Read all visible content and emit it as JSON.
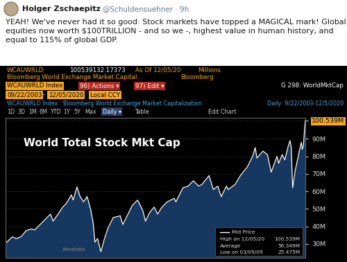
{
  "tweet": {
    "name": "Holger Zschaepitz",
    "handle": "@Schuldensuehner · 9h",
    "text": "YEAH! We've never had it so good: Stock markets have topped a MAGICAL mark! Global equities now worth $100TRILLION - and so we -, highest value in human history, and equal to 115% of global GDP."
  },
  "terminal": {
    "row1": {
      "ticker": "WCAUWRLD",
      "price": "100539132.17373",
      "as_of": "As Of 12/05/20",
      "units": "Millions"
    },
    "row2": {
      "name": "Bloomberg World Exchange Market Capital...",
      "source": "Bloomberg"
    },
    "row3": {
      "security": "WCAUWRLD Index",
      "actions": "96) Actions ▾",
      "edit": "97) Edit ▾",
      "page": "G 298: WorldMktCap"
    },
    "row4": {
      "start": "09/22/2003",
      "dash": "-",
      "end": "12/05/2020",
      "currency": "Local CCY"
    },
    "row5": {
      "description": "WCAUWRLD Index : Bloomberg World Exchange Market Capitalization",
      "period": "Daily  9/22/2003-12/5/2020"
    },
    "row6": {
      "buttons": [
        "1D",
        "3D",
        "1M",
        "6M",
        "YTD",
        "1Y",
        "5Y",
        "Max"
      ],
      "frequency": "Daily ▾",
      "table": "Table",
      "edit_chart": "Edit Chart"
    },
    "stats": [
      {
        "label": "Mid Price"
      },
      {
        "label": "High on 12/05/20",
        "value": "100.539M"
      },
      {
        "label": "Average",
        "value": "56.349M"
      },
      {
        "label": "Low on 03/09/09",
        "value": "25.475M"
      }
    ],
    "annotate": "Annotate"
  },
  "chart_data": {
    "type": "area",
    "title": "World Total Stock Mkt Cap",
    "color": "#ffffff",
    "x": [
      2003.72,
      2003.9,
      2004.1,
      2004.35,
      2004.6,
      2004.9,
      2005.2,
      2005.4,
      2005.7,
      2005.9,
      2006.3,
      2006.45,
      2006.7,
      2007.0,
      2007.2,
      2007.5,
      2007.6,
      2007.82,
      2008.0,
      2008.2,
      2008.4,
      2008.6,
      2008.75,
      2008.85,
      2009.0,
      2009.19,
      2009.4,
      2009.6,
      2009.9,
      2010.3,
      2010.45,
      2010.7,
      2011.0,
      2011.3,
      2011.6,
      2011.75,
      2012.0,
      2012.25,
      2012.45,
      2012.7,
      2013.0,
      2013.4,
      2013.5,
      2013.9,
      2014.2,
      2014.5,
      2014.8,
      2015.0,
      2015.4,
      2015.65,
      2015.9,
      2016.1,
      2016.4,
      2016.5,
      2016.9,
      2017.2,
      2017.6,
      2017.9,
      2018.05,
      2018.15,
      2018.5,
      2018.75,
      2018.97,
      2019.3,
      2019.4,
      2019.6,
      2019.75,
      2019.95,
      2020.05,
      2020.12,
      2020.2,
      2020.35,
      2020.5,
      2020.65,
      2020.7,
      2020.75,
      2020.82,
      2020.88,
      2020.93
    ],
    "values": [
      30.5,
      32,
      34,
      33,
      34,
      37.5,
      38.5,
      38,
      41,
      43,
      47,
      43,
      46.5,
      51,
      53,
      58,
      55,
      62.5,
      57,
      54,
      57,
      50,
      42,
      31,
      33,
      25.5,
      33,
      39,
      45,
      46,
      41,
      46,
      52,
      55,
      49,
      43,
      48,
      51,
      47,
      51,
      54,
      56,
      54,
      62,
      63,
      66,
      63,
      64,
      69,
      61,
      63,
      57,
      63,
      61,
      64,
      69,
      74,
      80,
      85,
      79,
      83,
      81,
      71,
      80,
      76,
      81,
      78,
      86,
      89,
      85,
      62,
      72,
      79,
      86,
      88,
      84,
      86,
      95,
      100.539
    ],
    "xlim": [
      2003.72,
      2020.93
    ],
    "xticks": [],
    "ylim": [
      22,
      102
    ],
    "yticks": [
      {
        "value": 30,
        "label": "30M"
      },
      {
        "value": 40,
        "label": "40M"
      },
      {
        "value": 50,
        "label": "50M"
      },
      {
        "value": 60,
        "label": "60M"
      },
      {
        "value": 70,
        "label": "70M"
      },
      {
        "value": 80,
        "label": "80M"
      },
      {
        "value": 90,
        "label": "90M"
      },
      {
        "value": 100.539,
        "label": "100.539M"
      }
    ],
    "tick_labels": "y",
    "grid": true
  }
}
